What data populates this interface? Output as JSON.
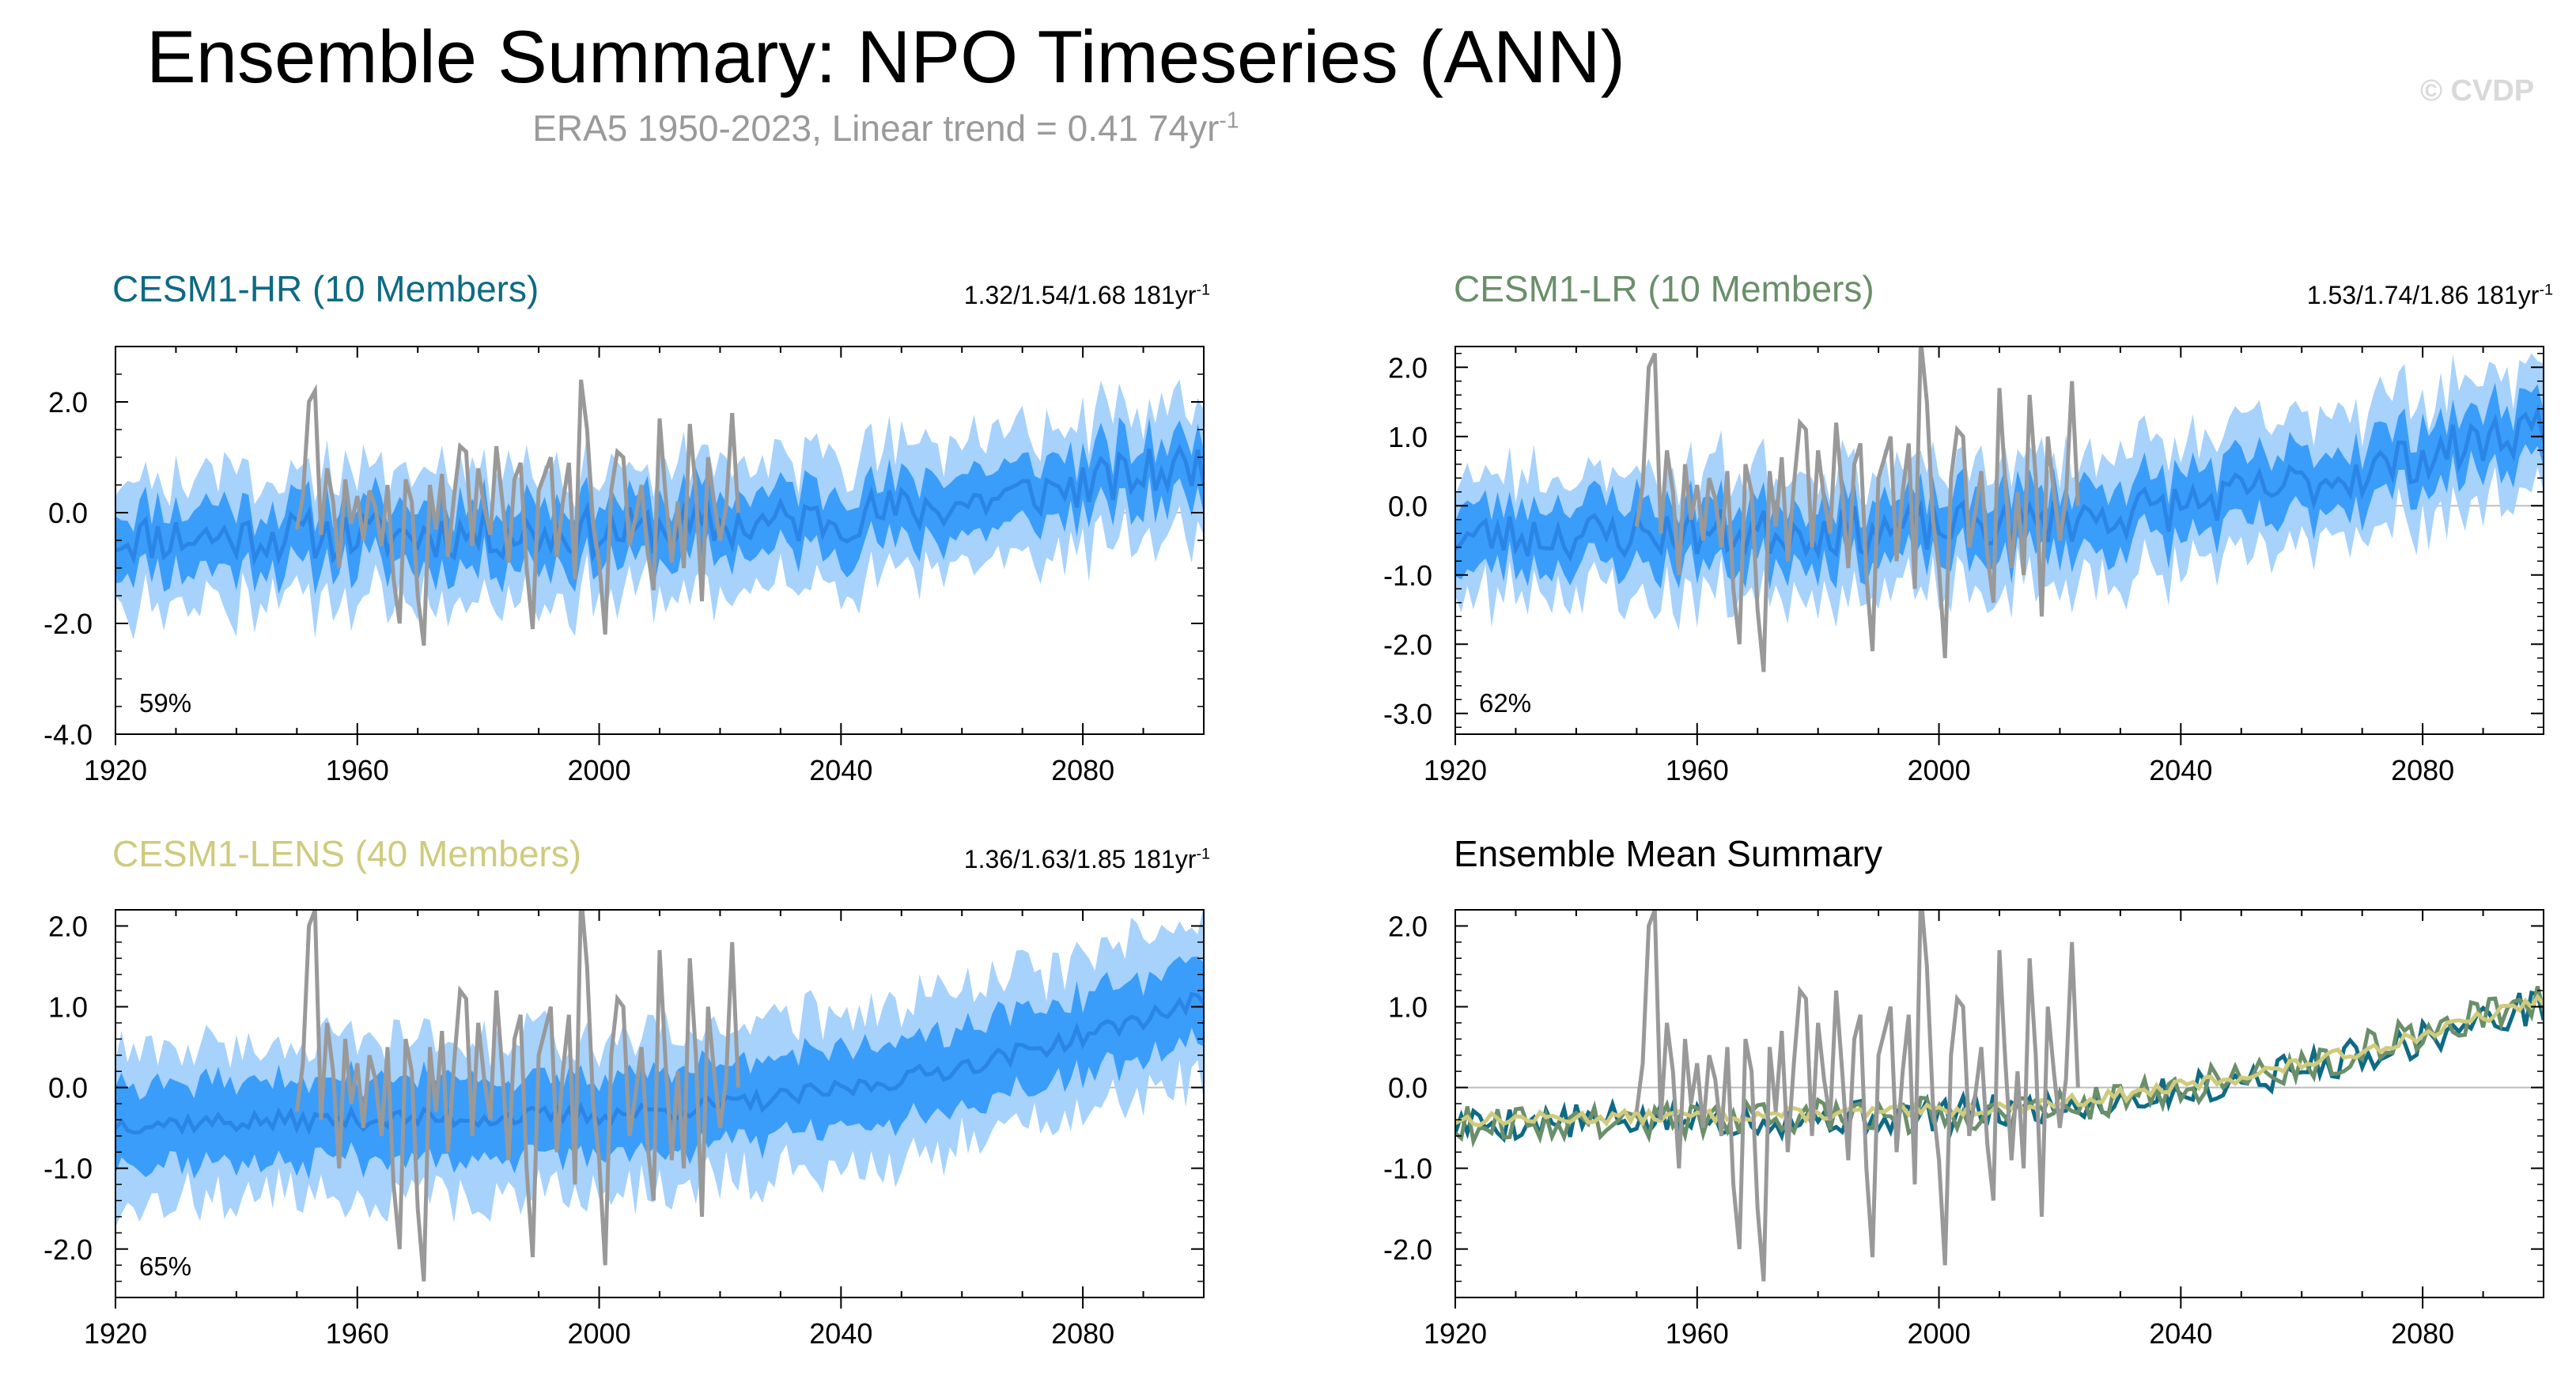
{
  "header": {
    "title": "Ensemble Summary: NPO Timeseries (ANN)",
    "subtitle_main": "ERA5 1950-2023, Linear trend = 0.41 74yr",
    "subtitle_sup": "-1",
    "copyright": "© CVDP"
  },
  "colors": {
    "outer_band": "#a7d2fc",
    "inner_band": "#3b9dfa",
    "ensemble_mean": "#2a85e6",
    "observations": "#999999",
    "hr": "#0e6a85",
    "lr": "#6a8f6a",
    "lens": "#cfcb7e",
    "zero_line": "#bdbdbd"
  },
  "chart_data": [
    {
      "id": "hr",
      "type": "area",
      "title": "CESM1-HR (10 Members)",
      "title_color": "#0e6a85",
      "stat_text": "1.32/1.54/1.68 181yr",
      "stat_sup": "-1",
      "percent_label": "59%",
      "xlim": [
        1920,
        2100
      ],
      "ylim": [
        -4.0,
        3.0
      ],
      "xticks": [
        1920,
        1960,
        2000,
        2040,
        2080
      ],
      "yticks": [
        2.0,
        0.0,
        -2.0,
        -4.0
      ],
      "ytick_labels": [
        "2.0",
        "0.0",
        "-2.0",
        "-4.0"
      ],
      "mean_trend": [
        -0.45,
        0.9
      ],
      "inner_halfwidth": 0.55,
      "outer_halfwidth": 1.15,
      "noise": 0.45,
      "seed": 11
    },
    {
      "id": "lr",
      "type": "area",
      "title": "CESM1-LR (10 Members)",
      "title_color": "#6a8f6a",
      "stat_text": "1.53/1.74/1.86 181yr",
      "stat_sup": "-1",
      "percent_label": "62%",
      "xlim": [
        1920,
        2100
      ],
      "ylim": [
        -3.3,
        2.3
      ],
      "xticks": [
        1920,
        1960,
        2000,
        2040,
        2080
      ],
      "yticks": [
        2.0,
        1.0,
        0.0,
        -1.0,
        -2.0,
        -3.0
      ],
      "ytick_labels": [
        "2.0",
        "1.0",
        "0.0",
        "-1.0",
        "-2.0",
        "-3.0"
      ],
      "mean_trend": [
        -0.45,
        1.2
      ],
      "inner_halfwidth": 0.45,
      "outer_halfwidth": 0.9,
      "noise": 0.35,
      "seed": 23
    },
    {
      "id": "lens",
      "type": "area",
      "title": "CESM1-LENS (40 Members)",
      "title_color": "#cfcb7e",
      "stat_text": "1.36/1.63/1.85 181yr",
      "stat_sup": "-1",
      "percent_label": "65%",
      "xlim": [
        1920,
        2100
      ],
      "ylim": [
        -2.6,
        2.2
      ],
      "xticks": [
        1920,
        1960,
        2000,
        2040,
        2080
      ],
      "yticks": [
        2.0,
        1.0,
        0.0,
        -1.0,
        -2.0
      ],
      "ytick_labels": [
        "2.0",
        "1.0",
        "0.0",
        "-1.0",
        "-2.0"
      ],
      "mean_trend": [
        -0.45,
        1.1
      ],
      "inner_halfwidth": 0.5,
      "outer_halfwidth": 0.95,
      "noise": 0.12,
      "seed": 37
    },
    {
      "id": "summary",
      "type": "line",
      "title": "Ensemble Mean Summary",
      "title_color": "#000000",
      "xlim": [
        1920,
        2100
      ],
      "ylim": [
        -2.6,
        2.2
      ],
      "xticks": [
        1920,
        1960,
        2000,
        2040,
        2080
      ],
      "yticks": [
        2.0,
        1.0,
        0.0,
        -1.0,
        -2.0
      ],
      "ytick_labels": [
        "2.0",
        "1.0",
        "0.0",
        "-1.0",
        "-2.0"
      ],
      "series": [
        {
          "name": "CESM1-HR",
          "color": "#0e6a85",
          "trend": [
            -0.45,
            1.05
          ],
          "noise": 0.22,
          "seed": 5
        },
        {
          "name": "CESM1-LR",
          "color": "#6a8f6a",
          "trend": [
            -0.45,
            1.15
          ],
          "noise": 0.22,
          "seed": 9
        },
        {
          "name": "CESM1-LENS",
          "color": "#cfcb7e",
          "trend": [
            -0.4,
            1.1
          ],
          "noise": 0.08,
          "seed": 13
        }
      ]
    }
  ],
  "observations": {
    "name": "ERA5",
    "start_year": 1950,
    "values": [
      -0.3,
      0.3,
      2.0,
      2.2,
      -0.4,
      0.8,
      0.2,
      -1.0,
      0.6,
      -0.2,
      0.3,
      -0.5,
      0.4,
      0.1,
      -0.6,
      0.5,
      -1.2,
      -2.0,
      0.6,
      0.2,
      -1.5,
      -2.4,
      0.5,
      -0.3,
      0.7,
      -0.8,
      0.3,
      1.2,
      1.1,
      -0.6,
      0.8,
      0.1,
      -0.4,
      1.2,
      0.2,
      -0.9,
      0.6,
      0.9,
      -1.0,
      -2.1,
      0.4,
      0.7,
      1.0,
      -0.8,
      0.2,
      0.9,
      -1.2,
      2.4,
      1.5,
      -0.2,
      -0.9,
      -2.2,
      0.4,
      1.1,
      1.0,
      -0.6,
      -0.1,
      0.5,
      -0.7,
      -1.4,
      1.7,
      0.3,
      -0.9,
      0.2,
      -1.0,
      1.6,
      0.4,
      -1.6,
      1.0,
      0.2,
      -0.5,
      0.1,
      1.8,
      0.0
    ]
  }
}
